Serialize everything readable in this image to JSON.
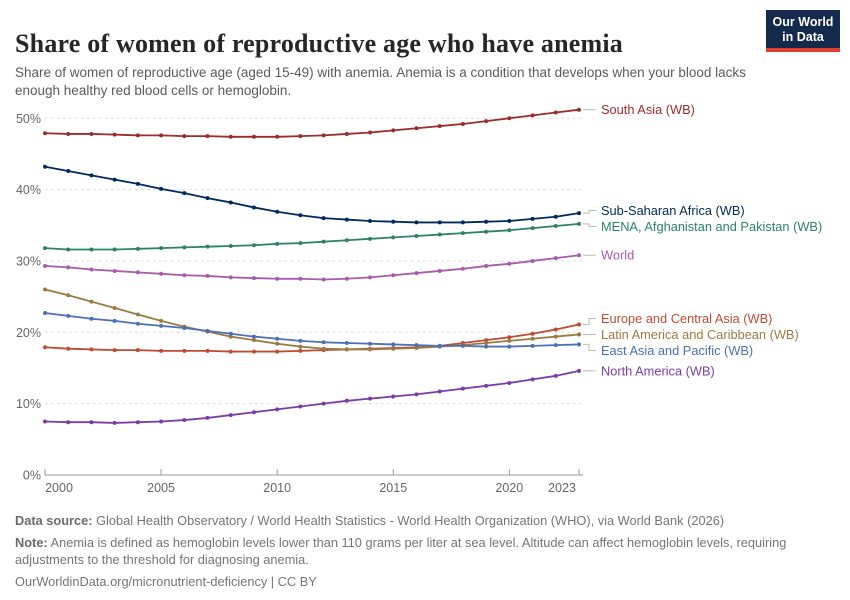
{
  "header": {
    "title": "Share of women of reproductive age who have anemia",
    "subtitle": "Share of women of reproductive age (aged 15-49) with anemia. Anemia is a condition that develops when your blood lacks enough healthy red blood cells or hemoglobin.",
    "logo": {
      "line1": "Our World",
      "line2": "in Data",
      "bg_color": "#132A4C",
      "stripe_color": "#E13F33"
    }
  },
  "chart_data": {
    "type": "line",
    "title": "Share of women of reproductive age who have anemia",
    "xlabel": "",
    "ylabel": "",
    "x": [
      2000,
      2001,
      2002,
      2003,
      2004,
      2005,
      2006,
      2007,
      2008,
      2009,
      2010,
      2011,
      2012,
      2013,
      2014,
      2015,
      2016,
      2017,
      2018,
      2019,
      2020,
      2021,
      2022,
      2023
    ],
    "xticks": [
      2000,
      2005,
      2010,
      2015,
      2020,
      2023
    ],
    "yticks": [
      0,
      10,
      20,
      30,
      40,
      50
    ],
    "ytick_labels": [
      "0%",
      "10%",
      "20%",
      "30%",
      "40%",
      "50%"
    ],
    "ylim": [
      0,
      53
    ],
    "grid": "horizontal-dashed",
    "legend_position": "right-of-line-ends",
    "series": [
      {
        "name": "South Asia (WB)",
        "color": "#9B2C2C",
        "values": [
          47.9,
          47.8,
          47.8,
          47.7,
          47.6,
          47.6,
          47.5,
          47.5,
          47.4,
          47.4,
          47.4,
          47.5,
          47.6,
          47.8,
          48.0,
          48.3,
          48.6,
          48.9,
          49.2,
          49.6,
          50.0,
          50.4,
          50.8,
          51.2
        ]
      },
      {
        "name": "Sub-Saharan Africa (WB)",
        "color": "#002A5C",
        "values": [
          43.2,
          42.6,
          42.0,
          41.4,
          40.8,
          40.1,
          39.5,
          38.8,
          38.2,
          37.5,
          36.9,
          36.4,
          36.0,
          35.8,
          35.6,
          35.5,
          35.4,
          35.4,
          35.4,
          35.5,
          35.6,
          35.9,
          36.2,
          36.7
        ]
      },
      {
        "name": "MENA, Afghanistan and Pakistan (WB)",
        "color": "#2C8465",
        "values": [
          31.8,
          31.6,
          31.6,
          31.6,
          31.7,
          31.8,
          31.9,
          32.0,
          32.1,
          32.2,
          32.4,
          32.5,
          32.7,
          32.9,
          33.1,
          33.3,
          33.5,
          33.7,
          33.9,
          34.1,
          34.3,
          34.6,
          34.9,
          35.2
        ]
      },
      {
        "name": "World",
        "color": "#A85CA9",
        "values": [
          29.3,
          29.1,
          28.8,
          28.6,
          28.4,
          28.2,
          28.0,
          27.9,
          27.7,
          27.6,
          27.5,
          27.5,
          27.4,
          27.5,
          27.7,
          28.0,
          28.3,
          28.6,
          28.9,
          29.3,
          29.6,
          30.0,
          30.4,
          30.8
        ]
      },
      {
        "name": "Europe and Central Asia (WB)",
        "color": "#BE4B32",
        "values": [
          17.9,
          17.7,
          17.6,
          17.5,
          17.5,
          17.4,
          17.4,
          17.4,
          17.3,
          17.3,
          17.3,
          17.4,
          17.5,
          17.6,
          17.7,
          17.8,
          17.9,
          18.1,
          18.5,
          18.9,
          19.3,
          19.8,
          20.4,
          21.1
        ]
      },
      {
        "name": "Latin America and Caribbean (WB)",
        "color": "#9C7A43",
        "values": [
          26.0,
          25.2,
          24.3,
          23.4,
          22.5,
          21.6,
          20.8,
          20.1,
          19.4,
          18.9,
          18.4,
          18.0,
          17.7,
          17.6,
          17.6,
          17.7,
          17.8,
          18.0,
          18.2,
          18.5,
          18.8,
          19.1,
          19.4,
          19.7
        ]
      },
      {
        "name": "East Asia and Pacific (WB)",
        "color": "#4C70B5",
        "values": [
          22.7,
          22.3,
          21.9,
          21.6,
          21.2,
          20.9,
          20.6,
          20.2,
          19.8,
          19.4,
          19.1,
          18.8,
          18.6,
          18.5,
          18.4,
          18.3,
          18.2,
          18.1,
          18.1,
          18.0,
          18.0,
          18.1,
          18.2,
          18.3
        ]
      },
      {
        "name": "North America (WB)",
        "color": "#7A3DA5",
        "values": [
          7.5,
          7.4,
          7.4,
          7.3,
          7.4,
          7.5,
          7.7,
          8.0,
          8.4,
          8.8,
          9.2,
          9.6,
          10.0,
          10.4,
          10.7,
          11.0,
          11.3,
          11.7,
          12.1,
          12.5,
          12.9,
          13.4,
          13.9,
          14.6
        ]
      }
    ]
  },
  "footer": {
    "source_label": "Data source:",
    "source_text": " Global Health Observatory / World Health Statistics - World Health Organization (WHO), via World Bank (2026)",
    "note_label": "Note:",
    "note_text": " Anemia is defined as hemoglobin levels lower than 110 grams per liter at sea level. Altitude can affect hemoglobin levels, requiring adjustments to the threshold for diagnosing anemia.",
    "link": "OurWorldinData.org/micronutrient-deficiency | CC BY"
  }
}
